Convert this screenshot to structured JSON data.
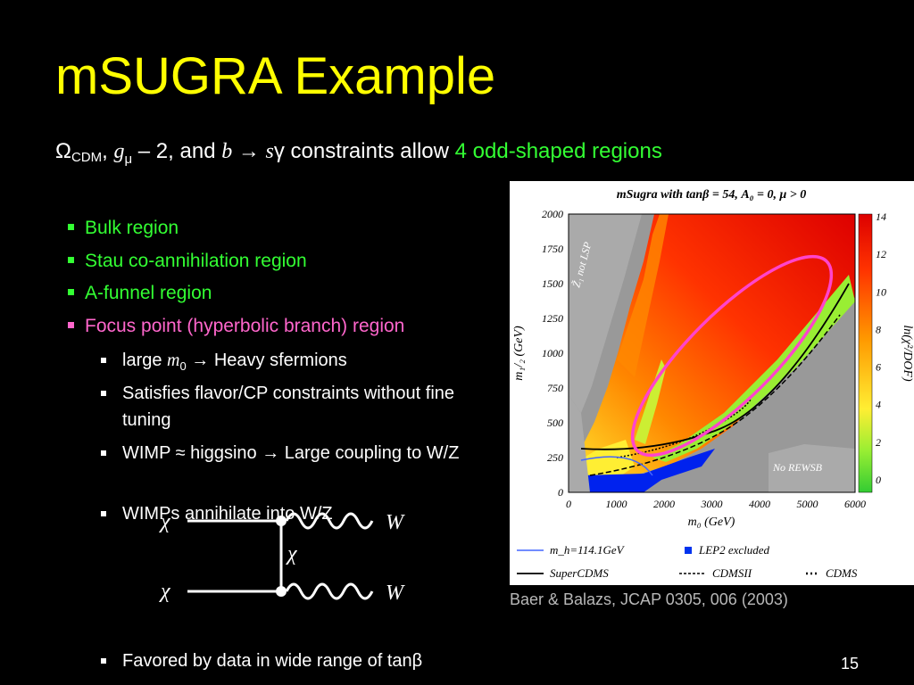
{
  "slide": {
    "title": "mSUGRA Example",
    "lead": {
      "omega_sym": "Ω",
      "cdm_sub": "CDM",
      "g_text": "g",
      "mu_sym": "μ",
      "minus_two": " – 2, and ",
      "b_text": "b",
      "arrow": " → ",
      "s_text": "s",
      "gamma_sym": "γ",
      "constraints": "  constraints allow ",
      "highlight": "4 odd-shaped regions"
    },
    "bullets": [
      {
        "text": "Bulk region",
        "color": "#33ff33"
      },
      {
        "text": "Stau co-annihilation region",
        "color": "#33ff33"
      },
      {
        "text": "A-funnel region",
        "color": "#33ff33"
      },
      {
        "text": "Focus point (hyperbolic branch) region",
        "color": "#ff66cc"
      }
    ],
    "sub_bullets": {
      "large_m0_a": "large ",
      "large_m0_m": "m",
      "large_m0_sub": "0",
      "large_m0_b": " → Heavy sfermions",
      "flavor": "Satisfies flavor/CP constraints without fine tuning",
      "wimp_higgsino": "WIMP ≈ higgsino → Large coupling to W/Z",
      "annihilate": "WIMPs annihilate into W/Z",
      "favored": "Favored by data in wide range of tanβ"
    },
    "feynman": {
      "w_label_top": "W",
      "w_label_bottom": "W",
      "chi_label": "χ"
    },
    "caption": "Baer & Balazs, JCAP 0305, 006 (2003)",
    "page_number": "15"
  },
  "figure": {
    "title": "mSugra with tanβ = 54, A₀ = 0, μ > 0",
    "xlabel": "m₀ (GeV)",
    "ylabel": "m₁/₂ (GeV)",
    "colorbar_label": "ln(χ²/DOF)",
    "x_ticks": [
      "0",
      "1000",
      "2000",
      "3000",
      "4000",
      "5000",
      "6000"
    ],
    "y_ticks": [
      "0",
      "250",
      "500",
      "750",
      "1000",
      "1250",
      "1500",
      "1750",
      "2000"
    ],
    "cb_ticks": [
      "0",
      "2",
      "4",
      "6",
      "8",
      "10",
      "12",
      "14"
    ],
    "region_left": "Z̃₁ not LSP",
    "region_right": "No REWSB",
    "legend": [
      "m_h=114.1GeV",
      "LEP2 excluded",
      "SuperCDMS",
      "CDMSII",
      "CDMS"
    ],
    "colors": {
      "highlight": "#ff44cc",
      "lep2": "#0033ee"
    }
  }
}
